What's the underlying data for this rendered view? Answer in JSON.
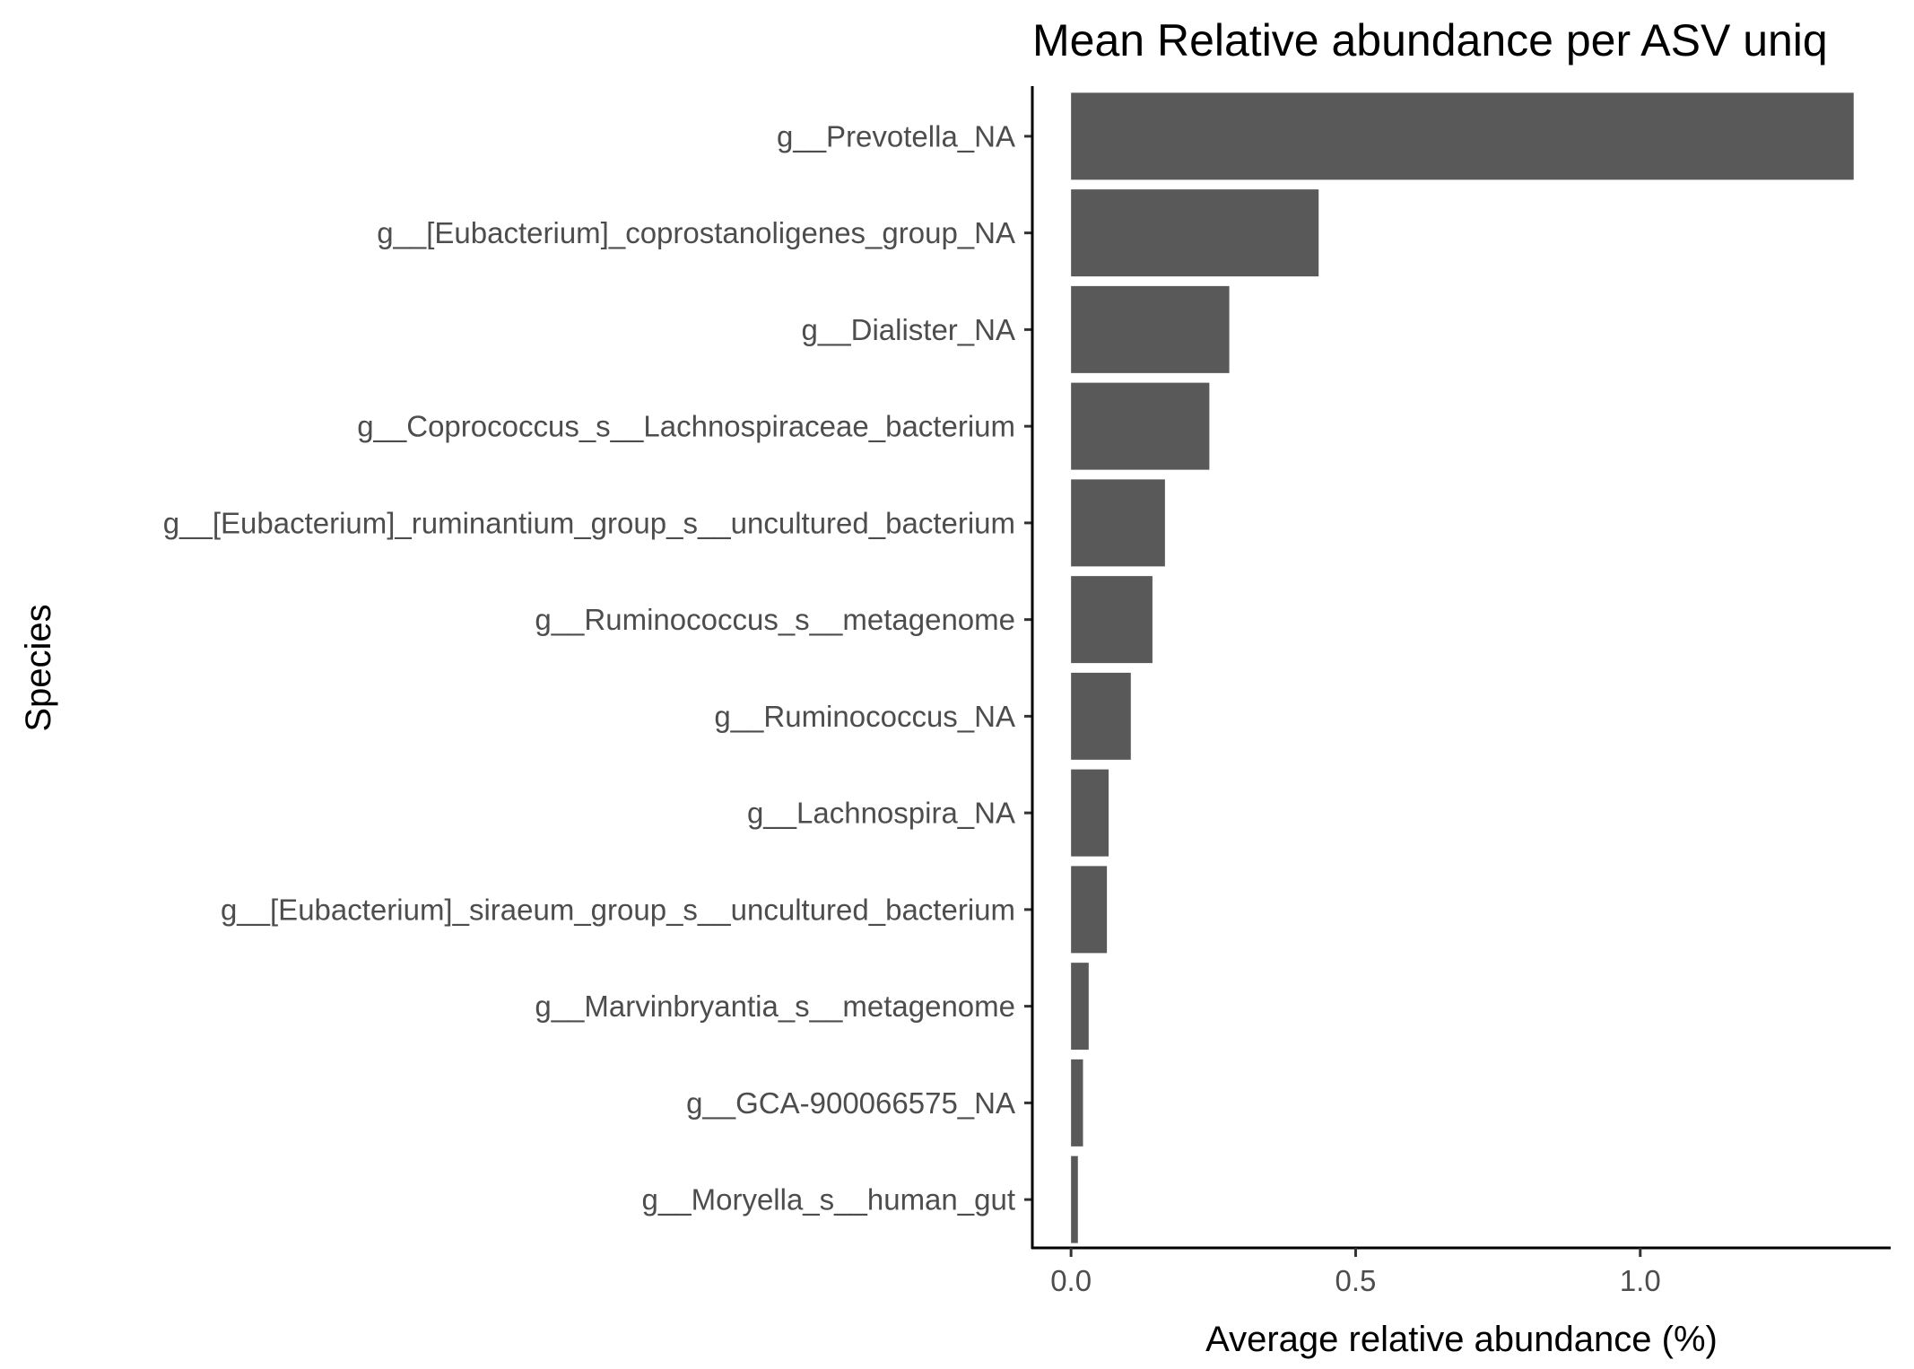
{
  "chart_data": {
    "type": "bar",
    "orientation": "horizontal",
    "title": "Mean Relative abundance per ASV uniq",
    "xlabel": "Average relative abundance (%)",
    "ylabel": "Species",
    "categories": [
      "g__Prevotella_NA",
      "g__[Eubacterium]_coprostanoligenes_group_NA",
      "g__Dialister_NA",
      "g__Coprococcus_s__Lachnospiraceae_bacterium",
      "g__[Eubacterium]_ruminantium_group_s__uncultured_bacterium",
      "g__Ruminococcus_s__metagenome",
      "g__Ruminococcus_NA",
      "g__Lachnospira_NA",
      "g__[Eubacterium]_siraeum_group_s__uncultured_bacterium",
      "g__Marvinbryantia_s__metagenome",
      "g__GCA-900066575_NA",
      "g__Moryella_s__human_gut"
    ],
    "values": [
      1.375,
      0.435,
      0.278,
      0.243,
      0.165,
      0.143,
      0.105,
      0.066,
      0.063,
      0.031,
      0.021,
      0.012
    ],
    "xlim": [
      -0.068,
      1.44
    ],
    "xticks": [
      0.0,
      0.5,
      1.0
    ],
    "xtick_labels": [
      "0.0",
      "0.5",
      "1.0"
    ],
    "grid": false,
    "legend": "none",
    "bar_color": "#595959"
  }
}
